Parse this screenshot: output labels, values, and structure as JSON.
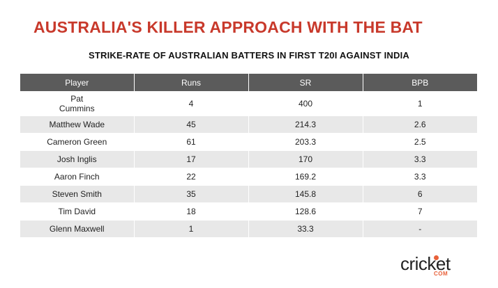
{
  "header": {
    "title": "AUSTRALIA'S KILLER APPROACH WITH THE BAT",
    "subtitle": "STRIKE-RATE OF AUSTRALIAN BATTERS IN FIRST T20I AGAINST INDIA"
  },
  "chart_data": {
    "type": "table",
    "columns": [
      "Player",
      "Runs",
      "SR",
      "BPB"
    ],
    "rows": [
      [
        "Pat\nCummins",
        "4",
        "400",
        "1"
      ],
      [
        "Matthew Wade",
        "45",
        "214.3",
        "2.6"
      ],
      [
        "Cameron Green",
        "61",
        "203.3",
        "2.5"
      ],
      [
        "Josh Inglis",
        "17",
        "170",
        "3.3"
      ],
      [
        "Aaron Finch",
        "22",
        "169.2",
        "3.3"
      ],
      [
        "Steven Smith",
        "35",
        "145.8",
        "6"
      ],
      [
        "Tim David",
        "18",
        "128.6",
        "7"
      ],
      [
        "Glenn Maxwell",
        "1",
        "33.3",
        "-"
      ]
    ]
  },
  "logo": {
    "word": "cricket",
    "suffix": "COM"
  },
  "colors": {
    "title": "#c8392b",
    "header_bg": "#5b5b5b",
    "stripe": "#e8e8e8",
    "logo_accent": "#e8613a"
  }
}
